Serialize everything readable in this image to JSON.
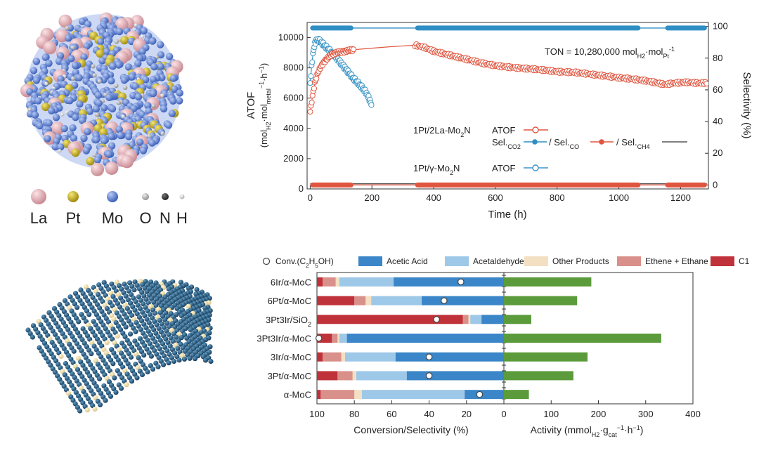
{
  "figure": {
    "legend_elements": [
      {
        "symbol": "La",
        "color": "#e6b3b8"
      },
      {
        "symbol": "Pt",
        "color": "#d2bb2a"
      },
      {
        "symbol": "Mo",
        "color": "#5a7fd8"
      },
      {
        "symbol": "O",
        "color": "#b9b9b9"
      },
      {
        "symbol": "N",
        "color": "#3a3a3a"
      },
      {
        "symbol": "H",
        "color": "#d0d0d0"
      }
    ],
    "ton_text": "TON = 10,280,000 mol",
    "ton_sub1": "H2",
    "ton_mid": "·mol",
    "ton_sub2": "Pt",
    "ton_sup": "-1",
    "legend1_label": "1Pt/2La-Mo",
    "legend1_sub": "2",
    "legend1_tail": "N",
    "legend1_series": "ATOF",
    "sel_label": "Sel.",
    "sel_co2": "CO2",
    "sel_co_prefix": "/ Sel.",
    "sel_co": "CO",
    "sel_ch4_prefix": "/ Sel.",
    "sel_ch4": "CH4",
    "legend2_label": "1Pt/γ-Mo",
    "legend2_sub": "2",
    "legend2_tail": "N",
    "legend2_series": "ATOF"
  },
  "colors": {
    "red": "#e0553f",
    "blue_sel": "#2f8ec3",
    "blue_atof": "#3d95c6",
    "dark": "#555555",
    "acetic": "#3a86c8",
    "acetaldehyde": "#9ec8e8",
    "other": "#f3dfc2",
    "ethene": "#d9908a",
    "c1": "#c0323a",
    "activity": "#5b9b3b"
  },
  "chart_data": [
    {
      "type": "line",
      "title": "",
      "xlabel": "Time (h)",
      "ylabel_main": "ATOF",
      "ylabel_units": "(mol",
      "ylabel_sub1": "H2",
      "ylabel_mid": "·mol",
      "ylabel_sub2": "metal",
      "ylabel_sup": "−1",
      "ylabel_tail": "·h",
      "ylabel_sup2": "−1",
      "ylabel_close": ")",
      "y2label": "Selectivity (%)",
      "xlim": [
        -10,
        1290
      ],
      "ylim": [
        0,
        11000
      ],
      "y2lim": [
        -2.5,
        102.5
      ],
      "xticks": [
        0,
        200,
        400,
        600,
        800,
        1000,
        1200
      ],
      "yticks": [
        0,
        2000,
        4000,
        6000,
        8000,
        10000
      ],
      "y2ticks": [
        0,
        20,
        40,
        60,
        80,
        100
      ],
      "series": [
        {
          "name": "1Pt/2La-Mo2N ATOF",
          "x": [
            0,
            8,
            15,
            25,
            35,
            45,
            55,
            70,
            85,
            100,
            115,
            140,
            200,
            260,
            340,
            370,
            400,
            440,
            480,
            520,
            560,
            600,
            640,
            700,
            760,
            800,
            860,
            900,
            960,
            1000,
            1070,
            1100,
            1150,
            1180,
            1220,
            1250,
            1285
          ],
          "values": [
            5100,
            6200,
            7000,
            7700,
            8100,
            8400,
            8600,
            8900,
            9000,
            9050,
            9100,
            9200,
            9300,
            9400,
            9500,
            9350,
            9100,
            8900,
            8700,
            8500,
            8300,
            8150,
            8050,
            7950,
            7850,
            7750,
            7700,
            7600,
            7450,
            7350,
            7200,
            7100,
            6900,
            7000,
            7050,
            7000,
            7000
          ]
        },
        {
          "name": "1Pt/γ-Mo2N ATOF",
          "x": [
            0,
            5,
            10,
            15,
            20,
            25,
            30,
            40,
            50,
            60,
            80,
            100,
            120,
            140,
            160,
            180,
            190,
            200
          ],
          "values": [
            7000,
            8200,
            9100,
            9600,
            9800,
            9850,
            9800,
            9600,
            9400,
            9200,
            8800,
            8300,
            7800,
            7300,
            6900,
            6400,
            6000,
            5500
          ]
        },
        {
          "name": "Sel.CO2",
          "axis": "y2",
          "x": [
            0,
            1285
          ],
          "values": [
            99,
            99
          ]
        },
        {
          "name": "Sel.CO",
          "axis": "y2",
          "x": [
            0,
            1285
          ],
          "values": [
            0,
            0
          ]
        },
        {
          "name": "Sel.CH4",
          "axis": "y2",
          "x": [
            0,
            1285
          ],
          "values": [
            0.8,
            0.8
          ]
        }
      ]
    },
    {
      "type": "bar",
      "title": "",
      "categories": [
        "6Ir/α-MoC",
        "6Pt/α-MoC",
        "3Pt3Ir/SiO2",
        "3Pt3Ir/α-MoC",
        "3Ir/α-MoC",
        "3Pt/α-MoC",
        "α-MoC"
      ],
      "category_display": [
        {
          "main": "6Ir/α-MoC",
          "sub": ""
        },
        {
          "main": "6Pt/α-MoC",
          "sub": ""
        },
        {
          "main": "3Pt3Ir/SiO",
          "sub": "2"
        },
        {
          "main": "3Pt3Ir/α-MoC",
          "sub": ""
        },
        {
          "main": "3Ir/α-MoC",
          "sub": ""
        },
        {
          "main": "3Pt/α-MoC",
          "sub": ""
        },
        {
          "main": "α-MoC",
          "sub": ""
        }
      ],
      "left_xlabel": "Conversion/Selectivity (%)",
      "left_xlim": [
        100,
        0
      ],
      "left_xticks": [
        100,
        80,
        60,
        40,
        20,
        0
      ],
      "right_xlabel_main": "Activity (mmol",
      "right_xlabel_sub1": "H2",
      "right_xlabel_mid": "·g",
      "right_xlabel_sub2": "cat",
      "right_xlabel_sup": "−1",
      "right_xlabel_tail": "·h",
      "right_xlabel_sup2": "−1",
      "right_xlabel_close": ")",
      "right_xlim": [
        0,
        400
      ],
      "right_xticks": [
        0,
        100,
        200,
        300,
        400
      ],
      "legend": [
        "Conv.(C2H5OH)",
        "Acetic Acid",
        "Acetaldehyde",
        "Other Products",
        "Ethene + Ethane",
        "C1"
      ],
      "legend_display": {
        "conv": "Conv.(C",
        "conv_sub1": "2",
        "conv_mid": "H",
        "conv_sub2": "5",
        "conv_tail": "OH)"
      },
      "series": [
        {
          "name": "Acetic Acid",
          "values": [
            59,
            44,
            12,
            84,
            58,
            52,
            21
          ]
        },
        {
          "name": "Acetaldehyde",
          "values": [
            29,
            27,
            6,
            4,
            27,
            27,
            55
          ]
        },
        {
          "name": "Other Products",
          "values": [
            2,
            3,
            1,
            1,
            2,
            2,
            4
          ]
        },
        {
          "name": "Ethene + Ethane",
          "values": [
            7,
            6,
            3,
            3,
            10,
            8,
            18
          ]
        },
        {
          "name": "C1",
          "values": [
            3,
            20,
            78,
            8,
            3,
            11,
            2
          ]
        },
        {
          "name": "Conv.(C2H5OH)",
          "values": [
            23,
            32,
            36,
            99,
            40,
            40,
            13
          ]
        },
        {
          "name": "Activity",
          "values": [
            185,
            155,
            58,
            333,
            177,
            147,
            53
          ]
        }
      ]
    }
  ]
}
